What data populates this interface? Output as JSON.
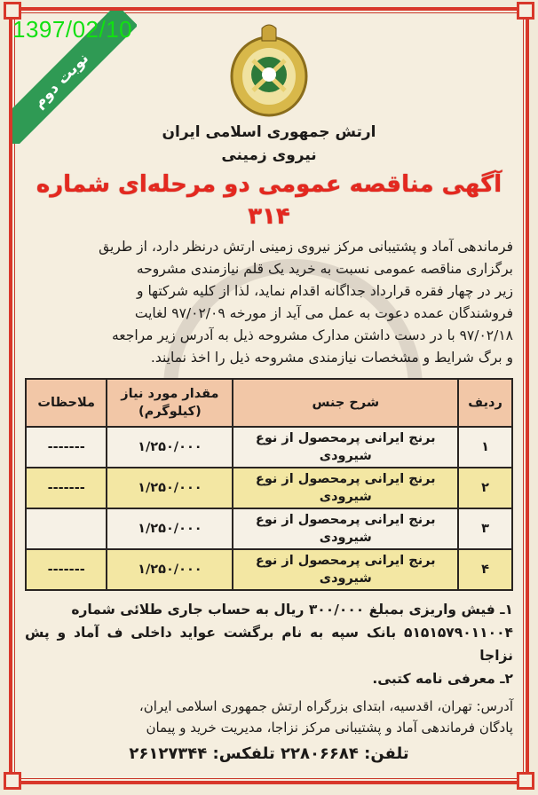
{
  "stamp_date": "1397/02/10",
  "ribbon": "نوبت دوم",
  "org_line1": "ارتش جمهوری اسلامی ایران",
  "org_line2": "نیروی زمینی",
  "title": "آگهی مناقصه عمومی دو مرحله‌ای شماره ۳۱۴",
  "body_lines": [
    "فرماندهی آماد و پشتیبانی مرکز نیروی زمینی ارتش درنظر دارد، از طریق",
    "برگزاری مناقصه عمومی نسبت به خرید یک قلم نیازمندی مشروحه",
    "زیر در چهار فقره قرارداد جداگانه اقدام نماید، لذا از کلیه شرکتها و",
    "فروشندگان عمده دعوت به عمل می آید از مورخه ۹۷/۰۲/۰۹ لغایت",
    "۹۷/۰۲/۱۸ با در دست داشتن مدارک مشروحه ذیل به آدرس زیر مراجعه",
    "و برگ شرایط و مشخصات نیازمندی مشروحه ذیل را اخذ نمایند."
  ],
  "table": {
    "headers": [
      "ردیف",
      "شرح جنس",
      "مقدار مورد نیاز (کیلوگرم)",
      "ملاحظات"
    ],
    "rows": [
      [
        "۱",
        "برنج ایرانی پرمحصول از نوع شیرودی",
        "۱/۲۵۰/۰۰۰",
        "-------"
      ],
      [
        "۲",
        "برنج ایرانی پرمحصول از نوع شیرودی",
        "۱/۲۵۰/۰۰۰",
        "-------"
      ],
      [
        "۳",
        "برنج ایرانی پرمحصول از نوع شیرودی",
        "۱/۲۵۰/۰۰۰",
        ""
      ],
      [
        "۴",
        "برنج ایرانی پرمحصول از نوع شیرودی",
        "۱/۲۵۰/۰۰۰",
        "-------"
      ]
    ]
  },
  "requirements": [
    "۱ـ فیش واریزی بمبلغ ۳۰۰/۰۰۰ ریال به حساب جاری طلائی شماره",
    "۵۱۵۱۵۷۹۰۱۱۰۰۴ بانک سپه به نام برگشت عواید داخلی ف آماد و پش نزاجا",
    "۲ـ معرفی نامه کتبی."
  ],
  "address_lines": [
    "آدرس: تهران، اقدسیه، ابتدای بزرگراه ارتش جمهوری اسلامی ایران،",
    "پادگان فرماندهی آماد و پشتیبانی مرکز نزاجا، مدیریت خرید و پیمان"
  ],
  "phone": "تلفن: ۲۲۸۰۶۶۸۴   تلفکس: ۲۶۱۲۷۳۴۴",
  "colors": {
    "frame": "#d8372a",
    "title": "#e4281f",
    "ribbon": "#2f9a54",
    "stamp": "#12e012",
    "table_header": "#f2c7a7",
    "row_alt": "#f3e7a3"
  }
}
